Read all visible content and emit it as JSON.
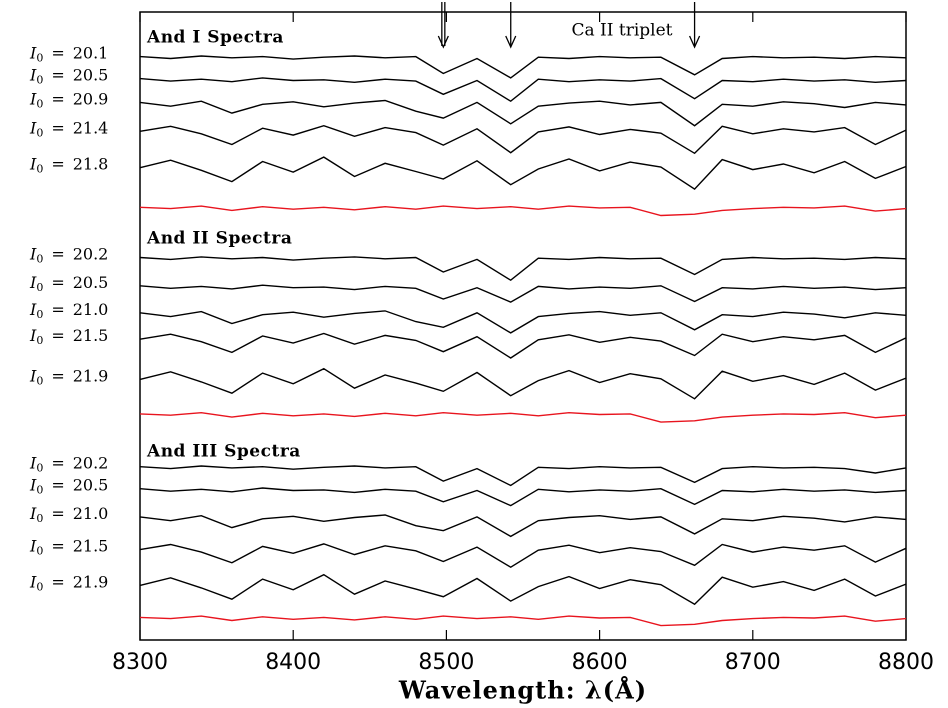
{
  "chart_data": {
    "type": "line",
    "xlabel": "Wavelength: λ(Å)",
    "annotation": "Ca II triplet",
    "arrows": [
      8498,
      8542,
      8662
    ],
    "label_symbol": "I",
    "label_subscript": "0",
    "label_equals": "=",
    "xlim": [
      8300,
      8800
    ],
    "xticks": [
      8300,
      8400,
      8500,
      8600,
      8700,
      8800
    ],
    "ylim": [
      0,
      100
    ],
    "x": [
      8300,
      8320,
      8340,
      8360,
      8380,
      8400,
      8420,
      8440,
      8460,
      8480,
      8498,
      8520,
      8542,
      8560,
      8580,
      8600,
      8620,
      8640,
      8662,
      8680,
      8700,
      8720,
      8740,
      8760,
      8780,
      8800
    ],
    "panels": [
      {
        "title": "And I Spectra",
        "series": [
          {
            "name": "20.1",
            "color": "#000000",
            "values": [
              92.9,
              92.6,
              93.0,
              92.7,
              92.9,
              92.5,
              92.8,
              93.0,
              92.7,
              92.9,
              90.2,
              92.6,
              89.5,
              92.8,
              92.6,
              92.9,
              92.7,
              92.8,
              90.0,
              92.6,
              92.9,
              92.7,
              92.8,
              92.6,
              92.9,
              92.7
            ]
          },
          {
            "name": "20.5",
            "color": "#000000",
            "values": [
              89.4,
              89.0,
              89.3,
              88.9,
              89.5,
              89.1,
              89.2,
              88.8,
              89.3,
              89.0,
              86.9,
              89.1,
              85.8,
              89.3,
              88.9,
              89.2,
              89.0,
              89.4,
              86.2,
              89.1,
              88.9,
              89.3,
              89.0,
              89.2,
              88.8,
              89.1
            ]
          },
          {
            "name": "20.9",
            "color": "#000000",
            "values": [
              85.6,
              85.0,
              85.8,
              83.9,
              85.3,
              85.7,
              84.9,
              85.5,
              85.9,
              84.2,
              83.1,
              85.6,
              82.2,
              85.0,
              85.5,
              85.8,
              85.2,
              85.6,
              81.9,
              85.3,
              85.0,
              85.7,
              85.4,
              84.8,
              85.6,
              85.2
            ]
          },
          {
            "name": "21.4",
            "color": "#000000",
            "values": [
              81.0,
              81.8,
              80.6,
              78.9,
              81.5,
              80.4,
              81.9,
              80.2,
              81.6,
              80.8,
              78.8,
              81.4,
              77.6,
              80.9,
              81.7,
              80.5,
              81.3,
              80.7,
              77.5,
              81.8,
              80.6,
              81.4,
              80.9,
              81.6,
              78.9,
              81.2
            ]
          },
          {
            "name": "21.8",
            "color": "#000000",
            "values": [
              75.2,
              76.4,
              74.8,
              73.0,
              76.2,
              74.5,
              76.9,
              73.8,
              75.9,
              74.6,
              73.4,
              76.3,
              72.5,
              75.0,
              76.6,
              74.7,
              76.1,
              75.3,
              71.8,
              76.5,
              74.9,
              75.8,
              74.4,
              76.2,
              73.5,
              75.4
            ]
          },
          {
            "color": "#e8141e",
            "values": [
              68.9,
              68.7,
              69.1,
              68.4,
              69.0,
              68.6,
              68.9,
              68.5,
              69.0,
              68.6,
              69.1,
              68.7,
              69.0,
              68.6,
              69.1,
              68.8,
              68.9,
              67.6,
              67.8,
              68.4,
              68.7,
              68.9,
              68.8,
              69.1,
              68.3,
              68.7
            ]
          }
        ]
      },
      {
        "title": "And II Spectra",
        "series": [
          {
            "name": "20.2",
            "color": "#000000",
            "values": [
              60.9,
              60.6,
              61.0,
              60.7,
              60.9,
              60.5,
              60.8,
              61.0,
              60.7,
              60.9,
              58.6,
              60.6,
              57.3,
              60.8,
              60.6,
              60.9,
              60.7,
              60.8,
              58.2,
              60.6,
              60.9,
              60.7,
              60.8,
              60.6,
              60.9,
              60.7
            ]
          },
          {
            "name": "20.5",
            "color": "#000000",
            "values": [
              56.4,
              56.0,
              56.3,
              55.9,
              56.5,
              56.1,
              56.2,
              55.8,
              56.3,
              56.0,
              54.3,
              56.1,
              53.8,
              56.3,
              55.9,
              56.2,
              56.0,
              56.4,
              53.9,
              56.1,
              55.9,
              56.3,
              56.0,
              56.2,
              55.8,
              56.1
            ]
          },
          {
            "name": "21.0",
            "color": "#000000",
            "values": [
              52.1,
              51.5,
              52.3,
              50.4,
              51.8,
              52.2,
              51.4,
              52.0,
              52.4,
              50.7,
              49.8,
              52.1,
              48.9,
              51.5,
              52.0,
              52.3,
              51.7,
              52.1,
              49.4,
              51.8,
              51.5,
              52.2,
              51.9,
              51.3,
              52.1,
              51.7
            ]
          },
          {
            "name": "21.5",
            "color": "#000000",
            "values": [
              47.9,
              48.7,
              47.5,
              45.8,
              48.4,
              47.3,
              48.8,
              47.1,
              48.5,
              47.7,
              45.9,
              48.3,
              44.9,
              47.8,
              48.6,
              47.4,
              48.2,
              47.6,
              45.3,
              48.7,
              47.5,
              48.3,
              47.8,
              48.5,
              45.8,
              48.1
            ]
          },
          {
            "name": "21.9",
            "color": "#000000",
            "values": [
              41.5,
              42.7,
              41.1,
              39.3,
              42.5,
              40.8,
              43.2,
              40.1,
              42.2,
              40.9,
              39.6,
              42.6,
              38.9,
              41.3,
              42.9,
              41.0,
              42.4,
              41.6,
              38.4,
              42.8,
              41.2,
              42.1,
              40.7,
              42.5,
              39.8,
              41.7
            ]
          },
          {
            "color": "#e8141e",
            "values": [
              36.0,
              35.8,
              36.2,
              35.5,
              36.1,
              35.7,
              36.0,
              35.6,
              36.1,
              35.7,
              36.2,
              35.8,
              36.1,
              35.7,
              36.2,
              35.9,
              36.0,
              34.7,
              34.9,
              35.5,
              35.8,
              36.0,
              35.9,
              36.2,
              35.4,
              35.8
            ]
          }
        ]
      },
      {
        "title": "And III Spectra",
        "series": [
          {
            "name": "20.2",
            "color": "#000000",
            "values": [
              27.6,
              27.3,
              27.7,
              27.4,
              27.6,
              27.2,
              27.5,
              27.7,
              27.4,
              27.6,
              25.3,
              27.3,
              24.6,
              27.5,
              27.3,
              27.6,
              27.4,
              27.5,
              25.1,
              27.3,
              27.6,
              27.4,
              27.5,
              27.3,
              26.6,
              27.4
            ]
          },
          {
            "name": "20.5",
            "color": "#000000",
            "values": [
              24.1,
              23.7,
              24.0,
              23.6,
              24.2,
              23.8,
              23.9,
              23.5,
              24.0,
              23.7,
              22.0,
              23.8,
              21.4,
              24.0,
              23.6,
              23.9,
              23.7,
              24.1,
              21.6,
              23.8,
              23.6,
              24.0,
              23.7,
              23.9,
              23.5,
              23.8
            ]
          },
          {
            "name": "21.0",
            "color": "#000000",
            "values": [
              19.6,
              19.0,
              19.8,
              17.9,
              19.3,
              19.7,
              18.9,
              19.5,
              19.9,
              18.2,
              17.4,
              19.6,
              16.5,
              19.0,
              19.5,
              19.8,
              19.2,
              19.6,
              16.9,
              19.3,
              19.0,
              19.7,
              19.4,
              18.8,
              19.6,
              19.2
            ]
          },
          {
            "name": "21.5",
            "color": "#000000",
            "values": [
              14.4,
              15.2,
              14.0,
              12.3,
              14.9,
              13.8,
              15.3,
              13.6,
              15.0,
              14.2,
              12.5,
              14.8,
              11.6,
              14.3,
              15.1,
              13.9,
              14.7,
              14.1,
              11.9,
              15.2,
              14.0,
              14.8,
              14.3,
              15.0,
              12.4,
              14.6
            ]
          },
          {
            "name": "21.9",
            "color": "#000000",
            "values": [
              8.7,
              9.9,
              8.3,
              6.5,
              9.7,
              8.0,
              10.4,
              7.3,
              9.4,
              8.1,
              6.9,
              9.8,
              6.2,
              8.5,
              10.1,
              8.2,
              9.6,
              8.8,
              5.7,
              10.0,
              8.4,
              9.3,
              7.9,
              9.7,
              7.0,
              8.9
            ]
          },
          {
            "color": "#e8141e",
            "values": [
              3.6,
              3.4,
              3.8,
              3.1,
              3.7,
              3.3,
              3.6,
              3.2,
              3.7,
              3.3,
              3.8,
              3.4,
              3.7,
              3.3,
              3.8,
              3.5,
              3.6,
              2.3,
              2.5,
              3.1,
              3.4,
              3.6,
              3.5,
              3.8,
              3.0,
              3.4
            ]
          }
        ]
      }
    ]
  }
}
